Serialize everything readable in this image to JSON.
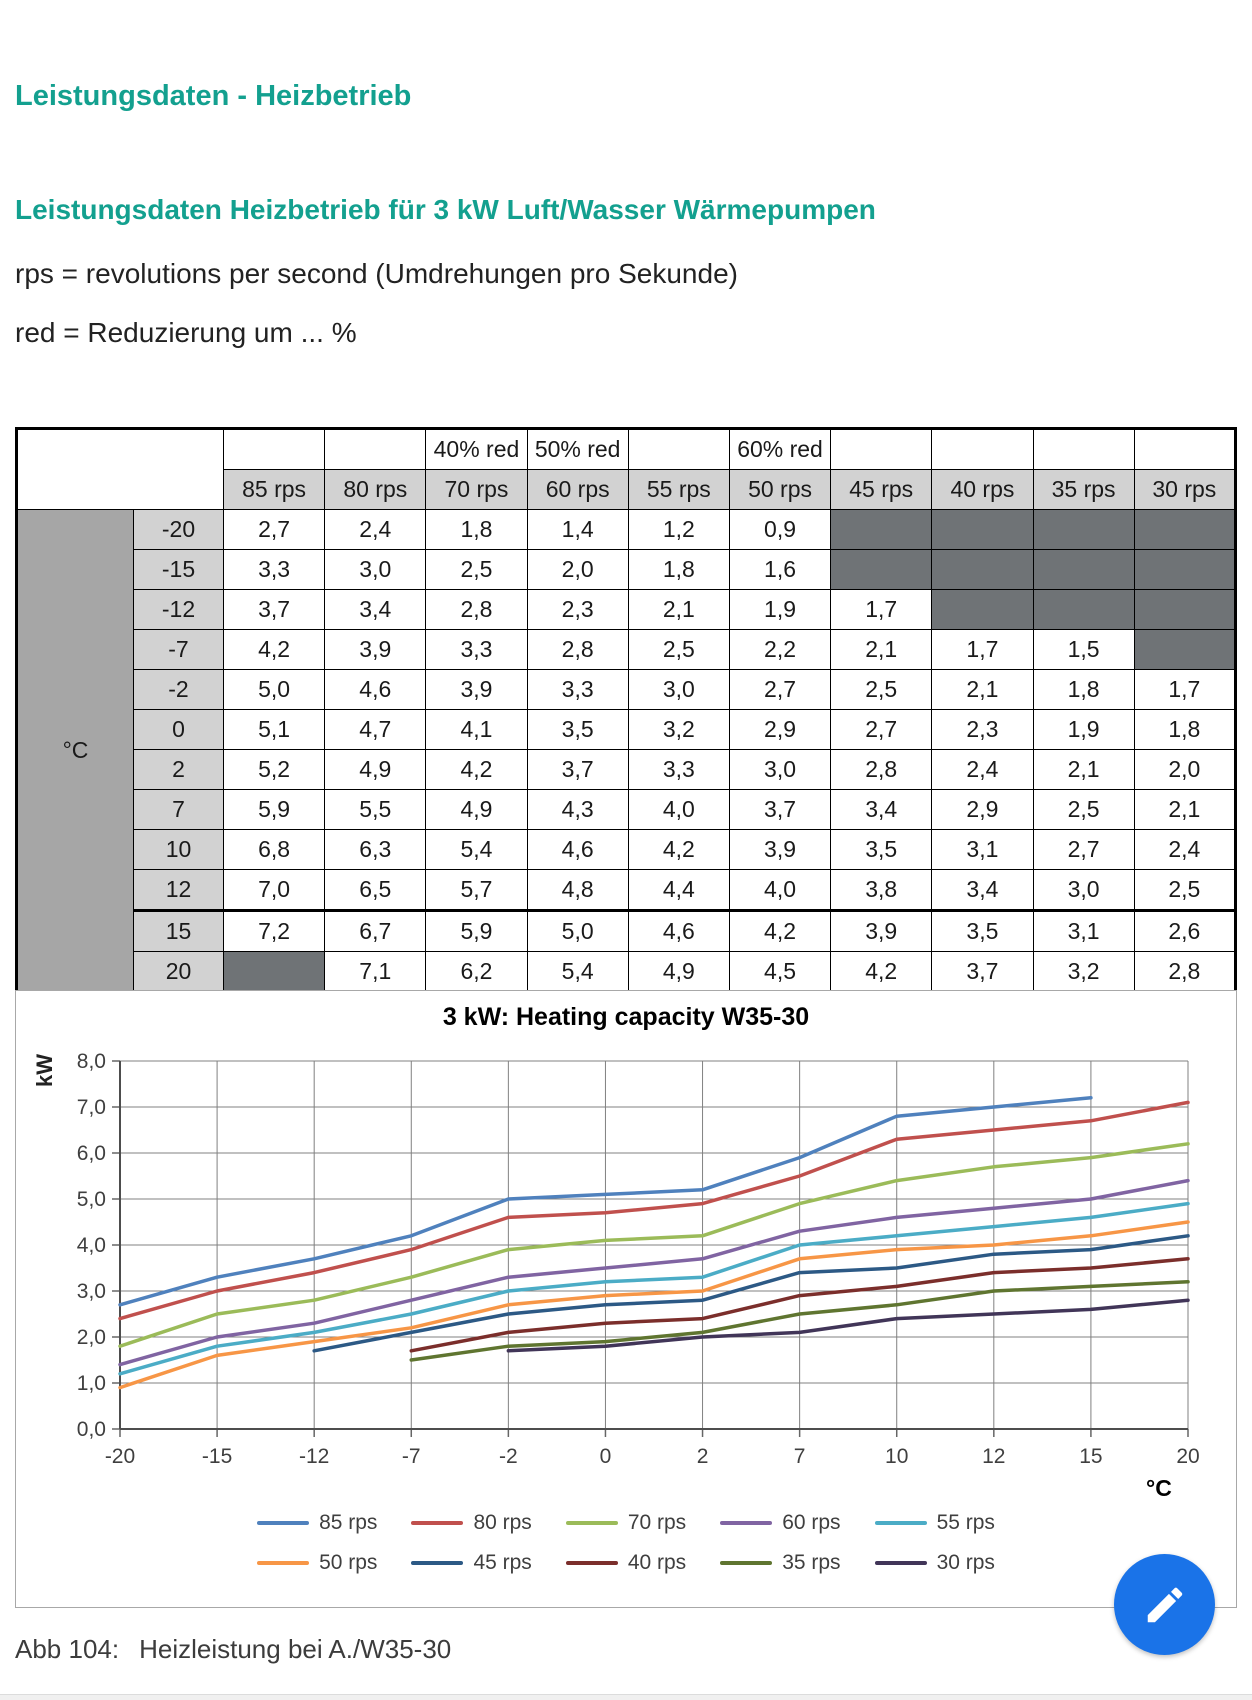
{
  "page": {
    "title1": "Leistungsdaten - Heizbetrieb",
    "title2": "Leistungsdaten Heizbetrieb für 3 kW Luft/Wasser Wärmepumpen",
    "note1": "rps = revolutions per second (Umdrehungen pro Sekunde)",
    "note2": "red = Reduzierung um ... %",
    "accent_color": "#13A08F",
    "caption_label": "Abb 104:",
    "caption_text": "Heizleistung bei A./W35-30"
  },
  "table": {
    "corner_label": "°C",
    "red_row": [
      "",
      "",
      "40% red",
      "50% red",
      "",
      "60% red",
      "",
      "",
      "",
      ""
    ],
    "rps_row": [
      "85 rps",
      "80 rps",
      "70 rps",
      "60 rps",
      "55 rps",
      "50 rps",
      "45 rps",
      "40 rps",
      "35 rps",
      "30 rps"
    ],
    "rows": [
      {
        "temp": "-20",
        "values": [
          "2,7",
          "2,4",
          "1,8",
          "1,4",
          "1,2",
          "0,9",
          null,
          null,
          null,
          null
        ]
      },
      {
        "temp": "-15",
        "values": [
          "3,3",
          "3,0",
          "2,5",
          "2,0",
          "1,8",
          "1,6",
          null,
          null,
          null,
          null
        ]
      },
      {
        "temp": "-12",
        "values": [
          "3,7",
          "3,4",
          "2,8",
          "2,3",
          "2,1",
          "1,9",
          "1,7",
          null,
          null,
          null
        ]
      },
      {
        "temp": "-7",
        "values": [
          "4,2",
          "3,9",
          "3,3",
          "2,8",
          "2,5",
          "2,2",
          "2,1",
          "1,7",
          "1,5",
          null
        ]
      },
      {
        "temp": "-2",
        "values": [
          "5,0",
          "4,6",
          "3,9",
          "3,3",
          "3,0",
          "2,7",
          "2,5",
          "2,1",
          "1,8",
          "1,7"
        ]
      },
      {
        "temp": "0",
        "values": [
          "5,1",
          "4,7",
          "4,1",
          "3,5",
          "3,2",
          "2,9",
          "2,7",
          "2,3",
          "1,9",
          "1,8"
        ]
      },
      {
        "temp": "2",
        "values": [
          "5,2",
          "4,9",
          "4,2",
          "3,7",
          "3,3",
          "3,0",
          "2,8",
          "2,4",
          "2,1",
          "2,0"
        ]
      },
      {
        "temp": "7",
        "values": [
          "5,9",
          "5,5",
          "4,9",
          "4,3",
          "4,0",
          "3,7",
          "3,4",
          "2,9",
          "2,5",
          "2,1"
        ]
      },
      {
        "temp": "10",
        "values": [
          "6,8",
          "6,3",
          "5,4",
          "4,6",
          "4,2",
          "3,9",
          "3,5",
          "3,1",
          "2,7",
          "2,4"
        ]
      },
      {
        "temp": "12",
        "values": [
          "7,0",
          "6,5",
          "5,7",
          "4,8",
          "4,4",
          "4,0",
          "3,8",
          "3,4",
          "3,0",
          "2,5"
        ]
      },
      {
        "temp": "15",
        "values": [
          "7,2",
          "6,7",
          "5,9",
          "5,0",
          "4,6",
          "4,2",
          "3,9",
          "3,5",
          "3,1",
          "2,6"
        ]
      },
      {
        "temp": "20",
        "values": [
          null,
          "7,1",
          "6,2",
          "5,4",
          "4,9",
          "4,5",
          "4,2",
          "3,7",
          "3,2",
          "2,8"
        ]
      }
    ]
  },
  "chart_data": {
    "type": "line",
    "title": "3 kW: Heating capacity W35-30",
    "ylabel": "kW",
    "xlabel": "°C",
    "categories": [
      "-20",
      "-15",
      "-12",
      "-7",
      "-2",
      "0",
      "2",
      "7",
      "10",
      "12",
      "15",
      "20"
    ],
    "ylim": [
      0,
      8
    ],
    "ytick_labels": [
      "0,0",
      "1,0",
      "2,0",
      "3,0",
      "4,0",
      "5,0",
      "6,0",
      "7,0",
      "8,0"
    ],
    "grid": true,
    "legend_position": "bottom",
    "series": [
      {
        "name": "85 rps",
        "color": "#4F81BD",
        "start": 0,
        "values": [
          2.7,
          3.3,
          3.7,
          4.2,
          5.0,
          5.1,
          5.2,
          5.9,
          6.8,
          7.0,
          7.2
        ]
      },
      {
        "name": "80 rps",
        "color": "#C0504D",
        "start": 0,
        "values": [
          2.4,
          3.0,
          3.4,
          3.9,
          4.6,
          4.7,
          4.9,
          5.5,
          6.3,
          6.5,
          6.7,
          7.1
        ]
      },
      {
        "name": "70 rps",
        "color": "#9BBB59",
        "start": 0,
        "values": [
          1.8,
          2.5,
          2.8,
          3.3,
          3.9,
          4.1,
          4.2,
          4.9,
          5.4,
          5.7,
          5.9,
          6.2
        ]
      },
      {
        "name": "60 rps",
        "color": "#8064A2",
        "start": 0,
        "values": [
          1.4,
          2.0,
          2.3,
          2.8,
          3.3,
          3.5,
          3.7,
          4.3,
          4.6,
          4.8,
          5.0,
          5.4
        ]
      },
      {
        "name": "55 rps",
        "color": "#4BACC6",
        "start": 0,
        "values": [
          1.2,
          1.8,
          2.1,
          2.5,
          3.0,
          3.2,
          3.3,
          4.0,
          4.2,
          4.4,
          4.6,
          4.9
        ]
      },
      {
        "name": "50 rps",
        "color": "#F79646",
        "start": 0,
        "values": [
          0.9,
          1.6,
          1.9,
          2.2,
          2.7,
          2.9,
          3.0,
          3.7,
          3.9,
          4.0,
          4.2,
          4.5
        ]
      },
      {
        "name": "45 rps",
        "color": "#2C5985",
        "start": 2,
        "values": [
          1.7,
          2.1,
          2.5,
          2.7,
          2.8,
          3.4,
          3.5,
          3.8,
          3.9,
          4.2
        ]
      },
      {
        "name": "40 rps",
        "color": "#7B2E2B",
        "start": 3,
        "values": [
          1.7,
          2.1,
          2.3,
          2.4,
          2.9,
          3.1,
          3.4,
          3.5,
          3.7
        ]
      },
      {
        "name": "35 rps",
        "color": "#5F7530",
        "start": 3,
        "values": [
          1.5,
          1.8,
          1.9,
          2.1,
          2.5,
          2.7,
          3.0,
          3.1,
          3.2
        ]
      },
      {
        "name": "30 rps",
        "color": "#413558",
        "start": 4,
        "values": [
          1.7,
          1.8,
          2.0,
          2.1,
          2.4,
          2.5,
          2.6,
          2.8
        ]
      }
    ]
  },
  "fab": {
    "color": "#1A73E8",
    "icon": "pencil-icon"
  }
}
